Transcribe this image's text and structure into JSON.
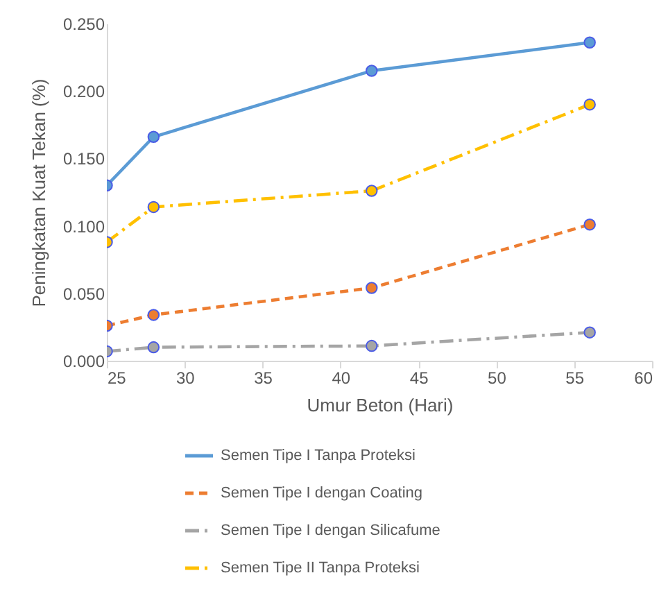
{
  "chart_data": {
    "type": "line",
    "xlabel": "Umur Beton (Hari)",
    "ylabel": "Peningkatan Kuat Tekan (%)",
    "xlim": [
      25,
      60
    ],
    "xticks": [
      25,
      30,
      35,
      40,
      45,
      50,
      55,
      60
    ],
    "ylim": [
      0,
      0.25
    ],
    "yticks": [
      {
        "value": 0,
        "label": "0.000"
      },
      {
        "value": 0.05,
        "label": "0.050"
      },
      {
        "value": 0.1,
        "label": "0.100"
      },
      {
        "value": 0.15,
        "label": "0.150"
      },
      {
        "value": 0.2,
        "label": "0.200"
      },
      {
        "value": 0.25,
        "label": "0.250"
      }
    ],
    "grid": false,
    "legend": "bottom",
    "marker": "circle",
    "series": [
      {
        "name": "Semen Tipe I Tanpa Proteksi",
        "color": "#5b9bd5",
        "line_style": "solid",
        "x": [
          25,
          28,
          42,
          56
        ],
        "values": [
          0.13,
          0.166,
          0.215,
          0.236
        ]
      },
      {
        "name": "Semen Tipe I dengan Coating",
        "color": "#ed7d31",
        "line_style": "dashed",
        "x": [
          25,
          28,
          42,
          56
        ],
        "values": [
          0.026,
          0.034,
          0.054,
          0.101
        ]
      },
      {
        "name": "Semen Tipe I dengan Silicafume",
        "color": "#a5a5a5",
        "line_style": "dashdot",
        "x": [
          25,
          28,
          42,
          56
        ],
        "values": [
          0.007,
          0.01,
          0.011,
          0.021
        ]
      },
      {
        "name": "Semen Tipe II Tanpa Proteksi",
        "color": "#ffc000",
        "line_style": "dashdot",
        "x": [
          25,
          28,
          42,
          56
        ],
        "values": [
          0.088,
          0.114,
          0.126,
          0.19
        ]
      }
    ]
  }
}
